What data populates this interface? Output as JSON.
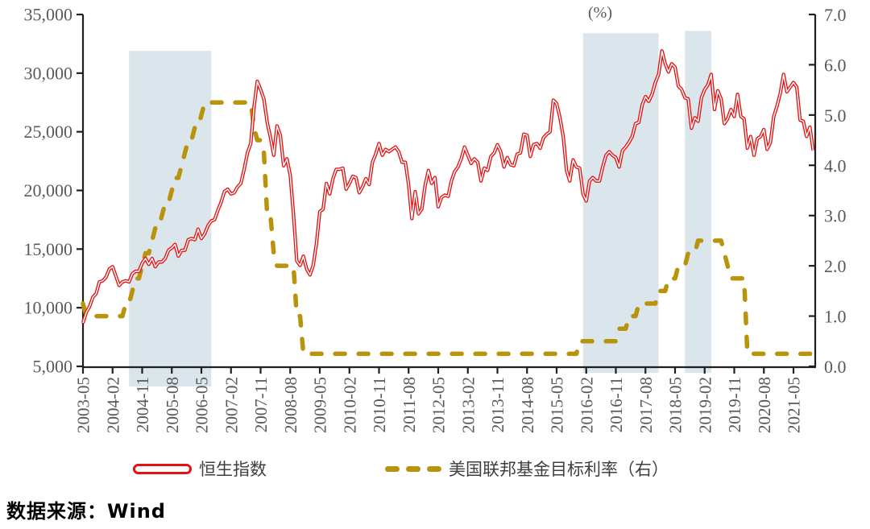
{
  "source_note": "数据来源：Wind",
  "chart_data": {
    "type": "line",
    "title": "",
    "grid": false,
    "legend_position": "bottom",
    "band_color": "#dbe5ec",
    "axis_color": "#1f1f1f",
    "tick_text_color": "#595959",
    "start_month": "2003-05",
    "end_month": "2021-11",
    "x_tick_labels": [
      "2003-05",
      "2004-02",
      "2004-11",
      "2005-08",
      "2006-05",
      "2007-02",
      "2007-11",
      "2008-08",
      "2009-05",
      "2010-02",
      "2010-11",
      "2011-08",
      "2012-05",
      "2013-02",
      "2013-11",
      "2014-08",
      "2015-05",
      "2016-02",
      "2016-11",
      "2017-08",
      "2018-05",
      "2019-02",
      "2019-11",
      "2020-08",
      "2021-05"
    ],
    "left_axis": {
      "min": 5000,
      "max": 35000,
      "step": 5000,
      "tick_labels": [
        "5,000",
        "10,000",
        "15,000",
        "20,000",
        "25,000",
        "30,000",
        "35,000"
      ]
    },
    "right_axis": {
      "min": 0,
      "max": 7,
      "step": 1,
      "unit_label": "(%)",
      "tick_labels": [
        "0.0",
        "1.0",
        "2.0",
        "3.0",
        "4.0",
        "5.0",
        "6.0",
        "7.0"
      ]
    },
    "bands": [
      {
        "start": "2004-07",
        "end": "2006-08",
        "top_value": 31900
      },
      {
        "start": "2016-01",
        "end": "2017-12",
        "top_value": 33400
      },
      {
        "start": "2018-08",
        "end": "2019-04",
        "top_value": 33600
      }
    ],
    "series": [
      {
        "name": "恒生指数",
        "axis": "left",
        "color": "#e51111",
        "style": "double-line",
        "values": [
          8700,
          9600,
          10100,
          10900,
          11200,
          12200,
          12300,
          12600,
          13300,
          13500,
          12700,
          11900,
          12200,
          12300,
          12200,
          12900,
          13100,
          13100,
          13800,
          14200,
          13700,
          14200,
          13500,
          13900,
          13900,
          14200,
          14900,
          15100,
          15400,
          14400,
          14900,
          14900,
          15800,
          15900,
          15800,
          16700,
          15900,
          16300,
          17000,
          17400,
          17500,
          18300,
          19000,
          19900,
          20100,
          19700,
          19800,
          20300,
          20600,
          21800,
          23200,
          24000,
          27100,
          29300,
          28600,
          27800,
          25800,
          24500,
          23000,
          25500,
          24700,
          22100,
          22700,
          21300,
          18000,
          14000,
          13600,
          14400,
          13300,
          12800,
          13600,
          15500,
          18200,
          18400,
          20600,
          19700,
          21000,
          21800,
          21800,
          21900,
          20100,
          20600,
          21200,
          21100,
          19800,
          20300,
          21000,
          20500,
          22400,
          23100,
          24000,
          23000,
          23500,
          23300,
          23500,
          23700,
          23300,
          22400,
          22400,
          20500,
          17600,
          19900,
          18000,
          18400,
          20400,
          21700,
          20600,
          21100,
          18600,
          19400,
          19600,
          19500,
          20800,
          21600,
          22000,
          22700,
          23700,
          23000,
          22300,
          22700,
          22400,
          20800,
          21900,
          21700,
          22900,
          23200,
          23900,
          23300,
          22000,
          22800,
          22200,
          22100,
          23100,
          23200,
          24800,
          24700,
          22900,
          23900,
          24000,
          23600,
          24500,
          24800,
          25000,
          27700,
          27400,
          26200,
          24600,
          21700,
          20800,
          22600,
          22000,
          21900,
          19700,
          19100,
          20800,
          21100,
          20800,
          20800,
          22000,
          23000,
          23300,
          23000,
          22800,
          22000,
          23400,
          23700,
          24100,
          24600,
          25700,
          25800,
          27300,
          28000,
          27600,
          28200,
          29200,
          29900,
          31900,
          30800,
          30100,
          30800,
          30500,
          28900,
          28600,
          27900,
          27800,
          25300,
          26200,
          25900,
          27900,
          28600,
          29000,
          29900,
          26900,
          28500,
          27800,
          25700,
          26100,
          26900,
          26300,
          28200,
          26300,
          26100,
          23600,
          24600,
          23000,
          24400,
          24600,
          25200,
          23500,
          24100,
          26300,
          27200,
          28300,
          29900,
          28400,
          28800,
          29200,
          28800,
          26000,
          25900,
          24600,
          25400,
          23400
        ]
      },
      {
        "name": "美国联邦基金目标利率（右）",
        "axis": "right",
        "color": "#b8940d",
        "style": "dashed",
        "values": [
          1.25,
          1,
          1,
          1,
          1,
          1,
          1,
          1,
          1,
          1,
          1,
          1,
          1,
          1.25,
          1.25,
          1.5,
          1.75,
          1.75,
          2,
          2.25,
          2.25,
          2.5,
          2.75,
          2.75,
          3,
          3.25,
          3.25,
          3.5,
          3.75,
          3.75,
          4,
          4.25,
          4.5,
          4.5,
          4.75,
          4.75,
          5,
          5.25,
          5.25,
          5.25,
          5.25,
          5.25,
          5.25,
          5.25,
          5.25,
          5.25,
          5.25,
          5.25,
          5.25,
          5.25,
          5.25,
          5.25,
          4.75,
          4.5,
          4.5,
          4.25,
          3,
          3,
          2.25,
          2,
          2,
          2,
          2,
          2,
          2,
          1,
          1,
          0.25,
          0.25,
          0.25,
          0.25,
          0.25,
          0.25,
          0.25,
          0.25,
          0.25,
          0.25,
          0.25,
          0.25,
          0.25,
          0.25,
          0.25,
          0.25,
          0.25,
          0.25,
          0.25,
          0.25,
          0.25,
          0.25,
          0.25,
          0.25,
          0.25,
          0.25,
          0.25,
          0.25,
          0.25,
          0.25,
          0.25,
          0.25,
          0.25,
          0.25,
          0.25,
          0.25,
          0.25,
          0.25,
          0.25,
          0.25,
          0.25,
          0.25,
          0.25,
          0.25,
          0.25,
          0.25,
          0.25,
          0.25,
          0.25,
          0.25,
          0.25,
          0.25,
          0.25,
          0.25,
          0.25,
          0.25,
          0.25,
          0.25,
          0.25,
          0.25,
          0.25,
          0.25,
          0.25,
          0.25,
          0.25,
          0.25,
          0.25,
          0.25,
          0.25,
          0.25,
          0.25,
          0.25,
          0.25,
          0.25,
          0.25,
          0.25,
          0.25,
          0.25,
          0.25,
          0.25,
          0.25,
          0.25,
          0.25,
          0.25,
          0.5,
          0.5,
          0.5,
          0.5,
          0.5,
          0.5,
          0.5,
          0.5,
          0.5,
          0.5,
          0.5,
          0.5,
          0.75,
          0.75,
          0.75,
          1,
          1,
          1,
          1.25,
          1.25,
          1.25,
          1.25,
          1.25,
          1.25,
          1.5,
          1.5,
          1.5,
          1.75,
          1.75,
          1.75,
          2,
          2,
          2,
          2.25,
          2.25,
          2.25,
          2.5,
          2.5,
          2.5,
          2.5,
          2.5,
          2.5,
          2.5,
          2.5,
          2.25,
          2,
          1.75,
          1.75,
          1.75,
          1.75,
          1.75,
          0.25,
          0.25,
          0.25,
          0.25,
          0.25,
          0.25,
          0.25,
          0.25,
          0.25,
          0.25,
          0.25,
          0.25,
          0.25,
          0.25,
          0.25,
          0.25,
          0.25,
          0.25,
          0.25,
          0.25,
          0.25
        ]
      }
    ]
  }
}
